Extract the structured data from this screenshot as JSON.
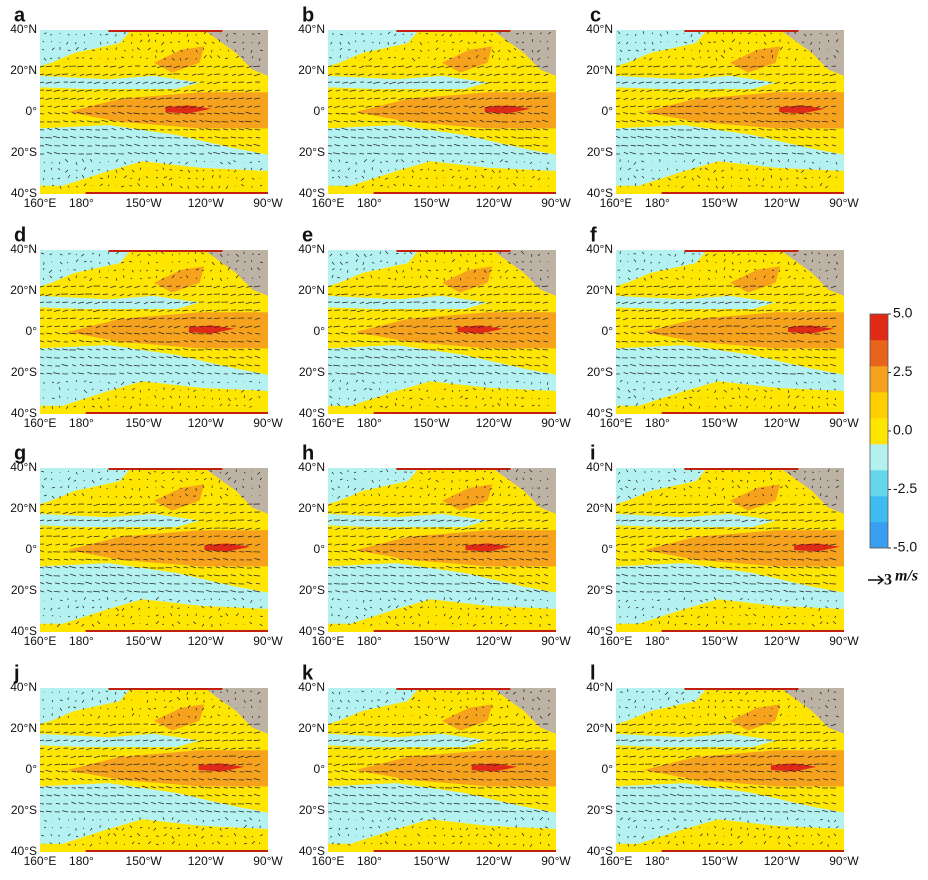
{
  "panels": [
    "a",
    "b",
    "c",
    "d",
    "e",
    "f",
    "g",
    "h",
    "i",
    "j",
    "k",
    "l"
  ],
  "lat_labels": [
    "40°N",
    "20°N",
    "0°",
    "20°S",
    "40°S"
  ],
  "lon_labels": [
    "160°E",
    "180°",
    "150°W",
    "120°W",
    "90°W"
  ],
  "colorbar": {
    "lim": [
      -5,
      5
    ],
    "ticks": [
      {
        "value": 5,
        "label": "5.0"
      },
      {
        "value": 2.5,
        "label": "2.5"
      },
      {
        "value": 0,
        "label": "0.0"
      },
      {
        "value": -2.5,
        "label": "-2.5"
      },
      {
        "value": -5,
        "label": "-5.0"
      }
    ],
    "colors": [
      "#3a9ef0",
      "#3cbcf0",
      "#66d8ee",
      "#b4f2f2",
      "#ffe600",
      "#ffd000",
      "#f7a21c",
      "#e8641a",
      "#e02a18"
    ]
  },
  "vector_key": {
    "value": "3",
    "unit": "m/s"
  }
}
